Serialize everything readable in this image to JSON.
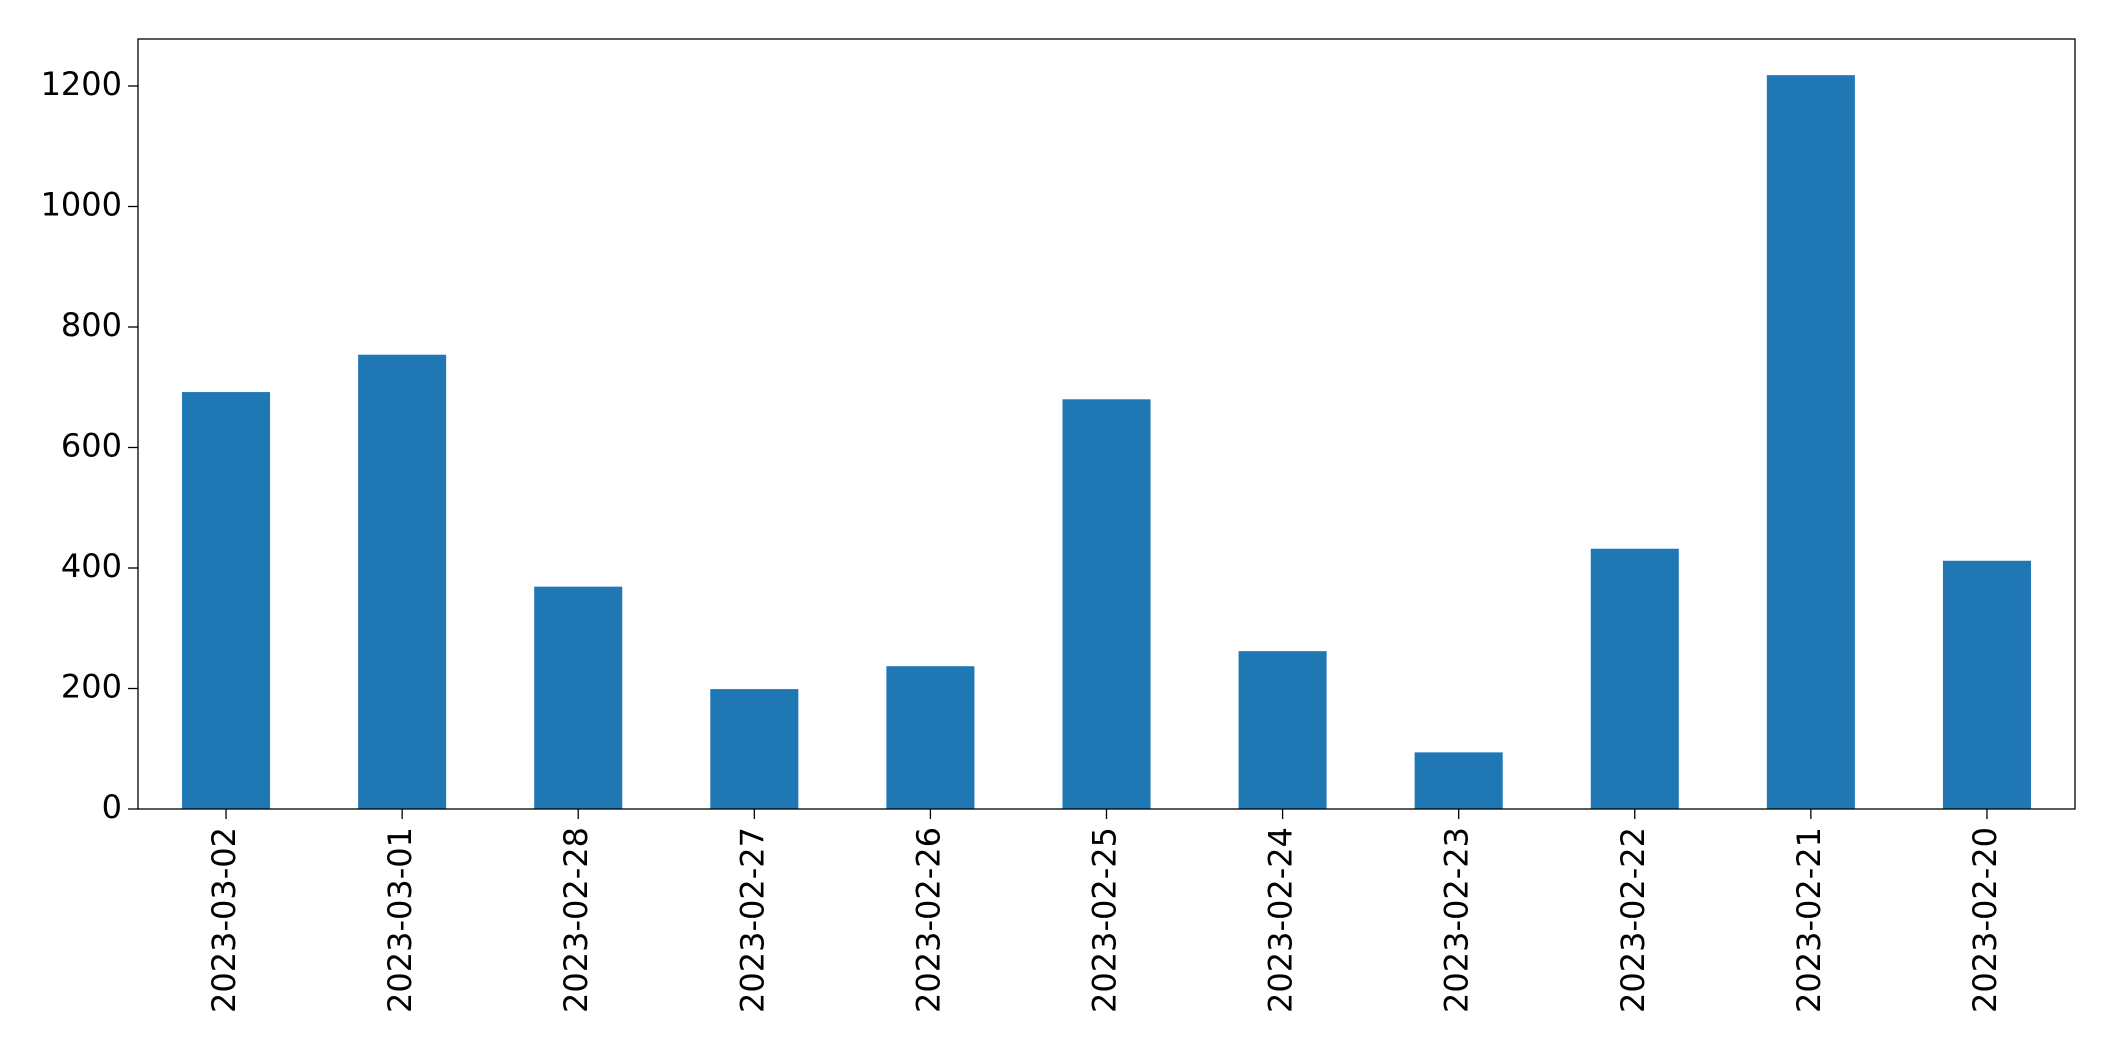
{
  "chart_data": {
    "type": "bar",
    "categories": [
      "2023-03-02",
      "2023-03-01",
      "2023-02-28",
      "2023-02-27",
      "2023-02-26",
      "2023-02-25",
      "2023-02-24",
      "2023-02-23",
      "2023-02-22",
      "2023-02-21",
      "2023-02-20"
    ],
    "values": [
      692,
      754,
      369,
      199,
      237,
      680,
      262,
      94,
      432,
      1218,
      412
    ],
    "color": "#1f77b4",
    "ylim": [
      0,
      1278
    ],
    "yticks": [
      0,
      200,
      400,
      600,
      800,
      1000,
      1200
    ],
    "grid": false
  }
}
